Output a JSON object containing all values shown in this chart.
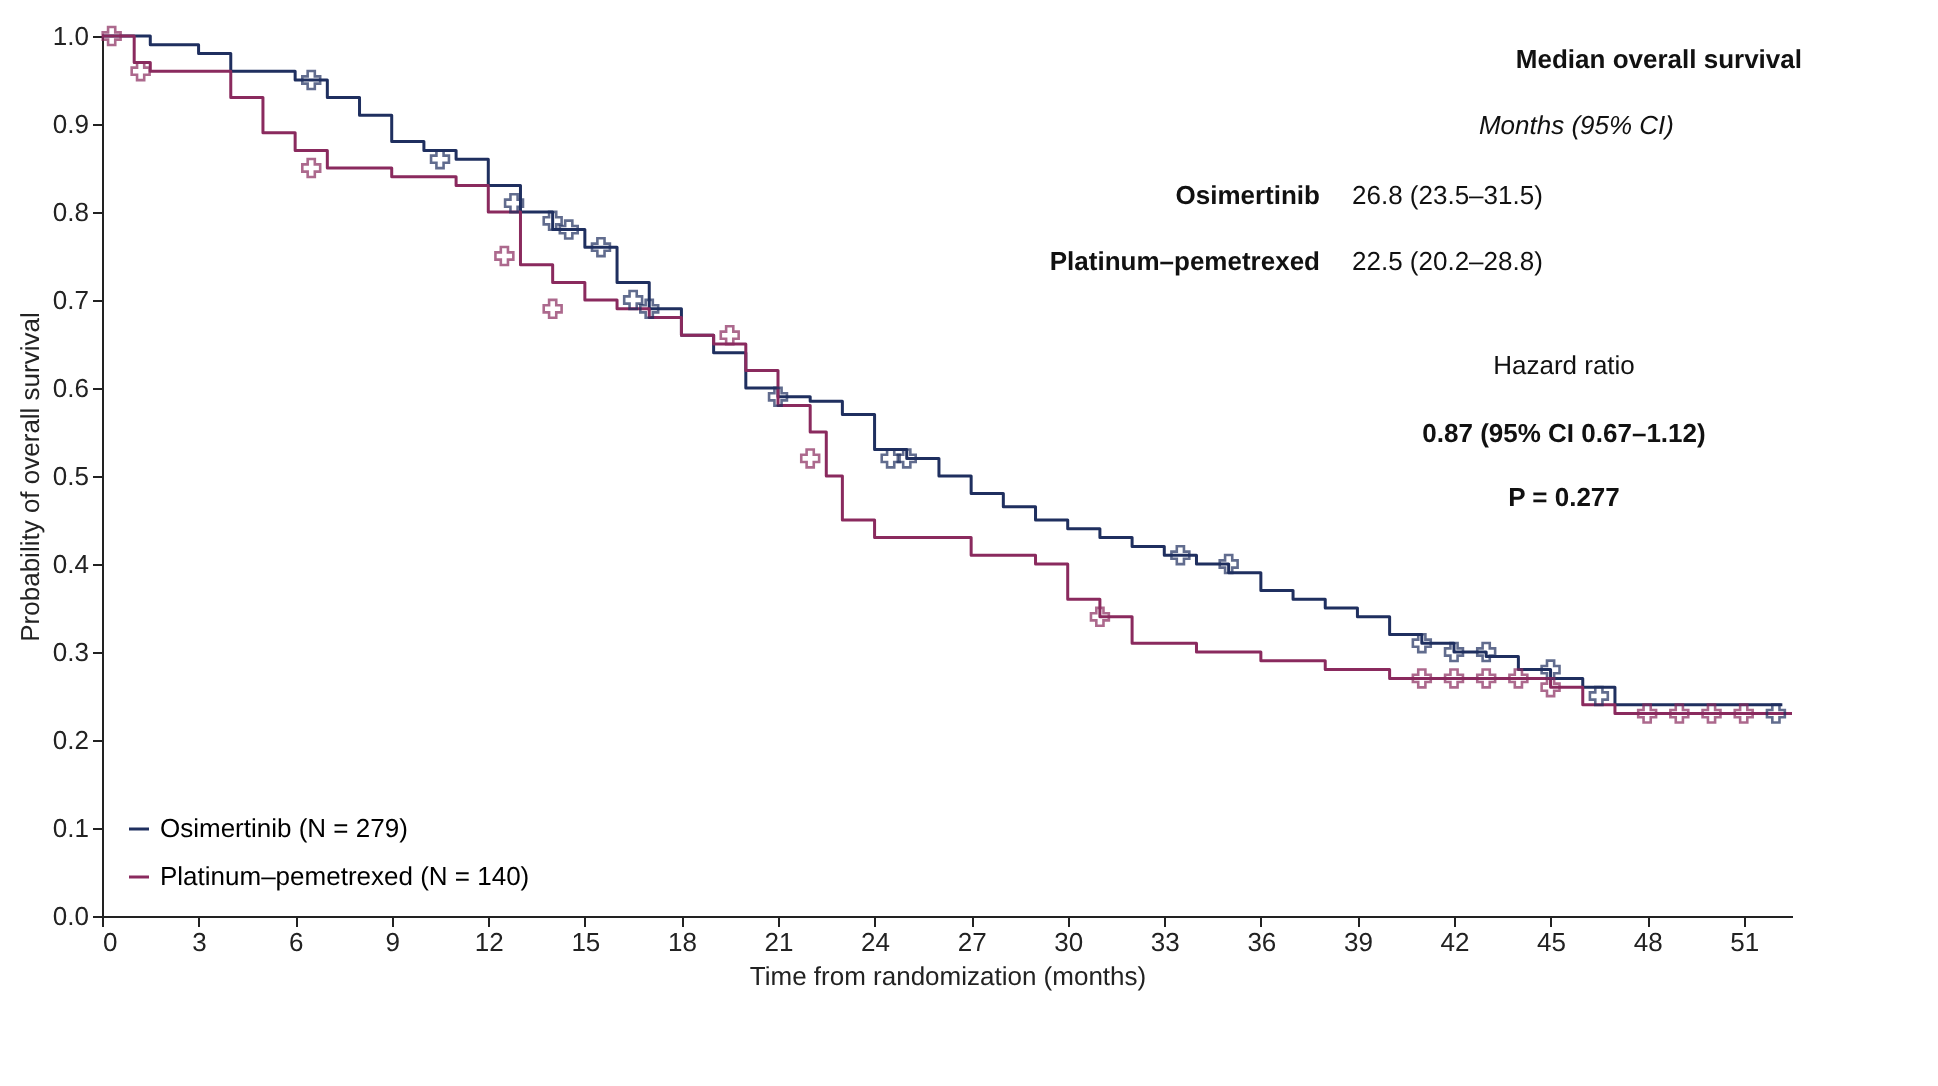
{
  "chart_data": {
    "type": "step",
    "xlabel": "Time from randomization (months)",
    "ylabel": "Probability of overall survival",
    "xlim": [
      0,
      52.5
    ],
    "xticks": [
      0,
      3,
      6,
      9,
      12,
      15,
      18,
      21,
      24,
      27,
      30,
      33,
      36,
      39,
      42,
      45,
      48,
      51
    ],
    "ylim": [
      0,
      1.0
    ],
    "yticks": [
      {
        "value": 0,
        "label": "0.0"
      },
      0.1,
      0.2,
      0.3,
      0.4,
      0.5,
      0.6,
      0.7,
      0.8,
      0.9,
      {
        "value": 1,
        "label": "1.0"
      }
    ],
    "grid": false,
    "legend": "bottom left",
    "line_style": "solid",
    "marker": "none",
    "series": [
      {
        "name": "Osimertinib (N = 279)",
        "color": "#1f2f5f",
        "x": [
          0,
          1.5,
          3,
          4,
          6,
          7,
          8,
          9,
          10,
          11,
          12,
          13,
          14,
          15,
          16,
          17,
          18,
          19,
          20,
          21,
          22,
          23,
          24,
          25,
          26,
          27,
          28,
          29,
          30,
          31,
          32,
          33,
          34,
          35,
          36,
          37,
          38,
          39,
          40,
          41,
          42,
          43,
          44,
          45,
          46,
          47,
          52.2
        ],
        "values": [
          1.0,
          0.99,
          0.98,
          0.96,
          0.95,
          0.93,
          0.91,
          0.88,
          0.87,
          0.86,
          0.83,
          0.8,
          0.78,
          0.76,
          0.72,
          0.69,
          0.66,
          0.64,
          0.6,
          0.59,
          0.585,
          0.57,
          0.53,
          0.52,
          0.5,
          0.48,
          0.465,
          0.45,
          0.44,
          0.43,
          0.42,
          0.41,
          0.4,
          0.39,
          0.37,
          0.36,
          0.35,
          0.34,
          0.32,
          0.31,
          0.3,
          0.295,
          0.28,
          0.27,
          0.26,
          0.24,
          0.24
        ]
      },
      {
        "name": "Platinum–pemetrexed (N = 140)",
        "color": "#8a2a5e",
        "x": [
          0,
          1,
          1.5,
          4,
          5,
          6,
          7,
          9,
          11,
          12,
          13,
          14,
          15,
          16,
          17,
          18,
          19,
          20,
          21,
          22,
          22.5,
          23,
          24,
          27,
          29,
          30,
          31,
          32,
          34,
          36,
          38,
          40,
          45,
          46,
          47,
          52.5
        ],
        "values": [
          1.0,
          0.97,
          0.96,
          0.93,
          0.89,
          0.87,
          0.85,
          0.84,
          0.83,
          0.8,
          0.74,
          0.72,
          0.7,
          0.69,
          0.68,
          0.66,
          0.65,
          0.62,
          0.58,
          0.55,
          0.5,
          0.45,
          0.43,
          0.41,
          0.4,
          0.36,
          0.34,
          0.31,
          0.3,
          0.29,
          0.28,
          0.27,
          0.26,
          0.24,
          0.23,
          0.23
        ]
      },
      {
        "color": "#1f2f5f",
        "type": "scatter",
        "marker": "cross",
        "x": [
          6.5,
          10.5,
          12.8,
          14,
          14.5,
          15.5,
          16.5,
          17,
          21,
          24.5,
          25,
          33.5,
          35,
          41,
          42,
          43,
          45,
          46.5,
          52
        ],
        "values": [
          0.95,
          0.86,
          0.81,
          0.79,
          0.78,
          0.76,
          0.7,
          0.69,
          0.59,
          0.52,
          0.52,
          0.41,
          0.4,
          0.31,
          0.3,
          0.3,
          0.28,
          0.25,
          0.23
        ]
      },
      {
        "color": "#8a2a5e",
        "type": "scatter",
        "marker": "cross",
        "x": [
          0.3,
          1.2,
          6.5,
          12.5,
          14,
          19.5,
          22,
          31,
          41,
          42,
          43,
          44,
          45,
          48,
          49,
          50,
          51
        ],
        "values": [
          1.0,
          0.96,
          0.85,
          0.75,
          0.69,
          0.66,
          0.52,
          0.34,
          0.27,
          0.27,
          0.27,
          0.27,
          0.26,
          0.23,
          0.23,
          0.23,
          0.23
        ]
      }
    ],
    "annotations": [
      "Median overall survival",
      "Months (95% CI)",
      "Osimertinib",
      "26.8 (23.5–31.5)",
      "Platinum–pemetrexed",
      "22.5 (20.2–28.8)",
      "Hazard ratio",
      "0.87 (95% CI 0.67–1.12)",
      "P = 0.277"
    ]
  }
}
